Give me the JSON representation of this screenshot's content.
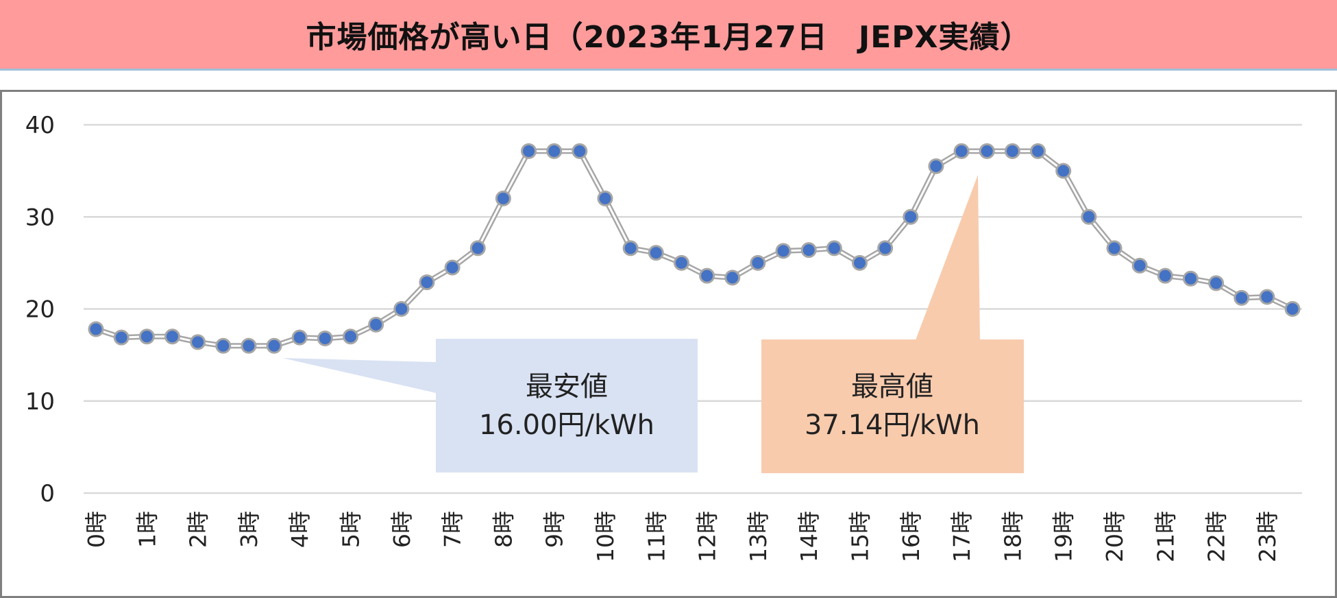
{
  "title": "市場価格が高い日（2023年1月27日　JEPX実績）",
  "colors": {
    "title_band": "#ff9b9b",
    "line": "#a6a6a6",
    "marker_fill": "#4472c4",
    "marker_edge": "#a6a6a6",
    "grid": "#d9d9d9",
    "callout_min": "#d9e2f3",
    "callout_max": "#f8cbad"
  },
  "chart_data": {
    "type": "line",
    "title": "市場価格が高い日（2023年1月27日　JEPX実績）",
    "xlabel": "",
    "ylabel": "",
    "ylim": [
      0,
      40
    ],
    "yticks": [
      0,
      10,
      20,
      30,
      40
    ],
    "grid": true,
    "xtick_labels": [
      "0時",
      "1時",
      "2時",
      "3時",
      "4時",
      "5時",
      "6時",
      "7時",
      "8時",
      "9時",
      "10時",
      "11時",
      "12時",
      "13時",
      "14時",
      "15時",
      "16時",
      "17時",
      "18時",
      "19時",
      "20時",
      "21時",
      "22時",
      "23時"
    ],
    "series": [
      {
        "name": "JEPX実績",
        "values": [
          17.8,
          16.9,
          17.0,
          17.0,
          16.4,
          16.0,
          16.0,
          16.0,
          16.9,
          16.8,
          17.0,
          18.3,
          20.0,
          22.9,
          24.5,
          26.6,
          32.0,
          37.14,
          37.14,
          37.14,
          32.0,
          26.6,
          26.1,
          25.0,
          23.6,
          23.4,
          25.0,
          26.3,
          26.4,
          26.6,
          25.0,
          26.6,
          30.0,
          35.5,
          37.14,
          37.14,
          37.14,
          37.14,
          35.0,
          30.0,
          26.6,
          24.7,
          23.6,
          23.3,
          22.8,
          21.2,
          21.3,
          20.0
        ]
      }
    ],
    "annotations": [
      {
        "id": "min",
        "title": "最安値",
        "value_text": "16.00円/kWh",
        "points_to_index": 7
      },
      {
        "id": "max",
        "title": "最高値",
        "value_text": "37.14円/kWh",
        "points_to_index": 35
      }
    ]
  }
}
